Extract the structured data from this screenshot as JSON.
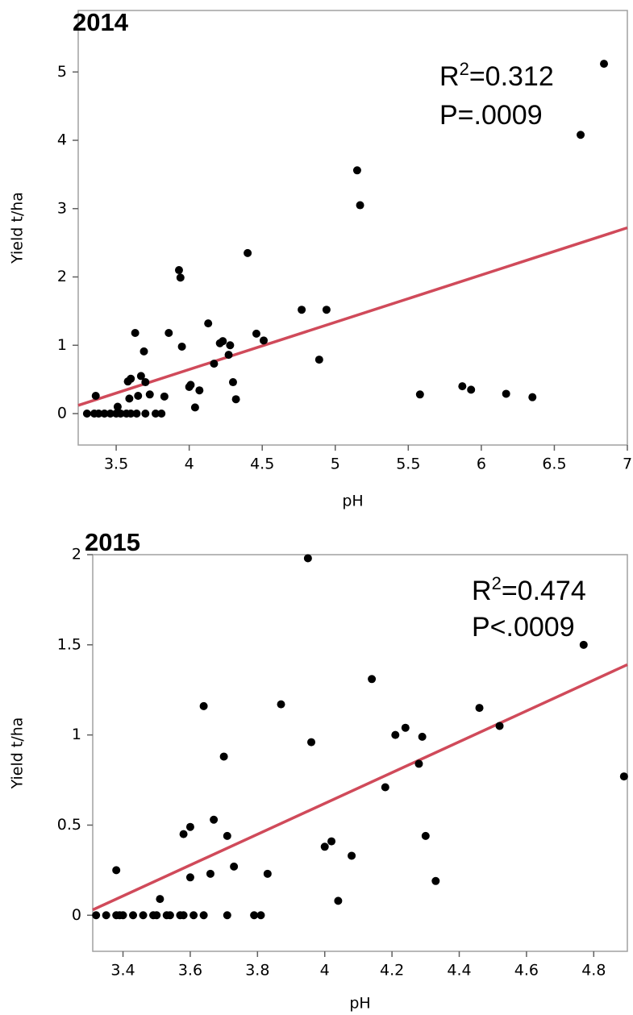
{
  "chart_data": [
    {
      "type": "scatter",
      "title": "2014",
      "x_label": "pH",
      "y_label": "Yield t/ha",
      "xlim": [
        3.24,
        7
      ],
      "ylim": [
        -0.46,
        5.9
      ],
      "xticks": [
        3.5,
        4,
        4.5,
        5,
        5.5,
        6,
        6.5,
        7
      ],
      "yticks": [
        0,
        1,
        2,
        3,
        4,
        5
      ],
      "color": "#000000",
      "x": [
        3.3,
        3.35,
        3.38,
        3.42,
        3.46,
        3.5,
        3.53,
        3.57,
        3.6,
        3.64,
        3.7,
        3.77,
        3.81,
        3.36,
        3.51,
        3.58,
        3.6,
        3.59,
        3.63,
        3.65,
        3.67,
        3.69,
        3.7,
        3.73,
        3.83,
        3.86,
        3.93,
        3.94,
        3.95,
        4.0,
        4.01,
        4.04,
        4.07,
        4.13,
        4.17,
        4.21,
        4.23,
        4.28,
        4.27,
        4.3,
        4.32,
        4.4,
        4.46,
        4.51,
        4.77,
        4.89,
        4.94,
        5.15,
        5.17,
        5.58,
        5.87,
        5.93,
        6.17,
        6.35,
        6.68,
        6.84
      ],
      "y": [
        0,
        0,
        0,
        0,
        0,
        0,
        0,
        0,
        0,
        0,
        0,
        0,
        0,
        0.26,
        0.1,
        0.47,
        0.51,
        0.22,
        1.18,
        0.26,
        0.55,
        0.91,
        0.46,
        0.28,
        0.25,
        1.18,
        2.1,
        1.99,
        0.98,
        0.39,
        0.42,
        0.09,
        0.34,
        1.32,
        0.73,
        1.03,
        1.06,
        1.0,
        0.86,
        0.46,
        0.21,
        2.35,
        1.17,
        1.07,
        1.52,
        0.79,
        1.52,
        3.56,
        3.05,
        0.28,
        0.4,
        0.35,
        0.29,
        0.24,
        4.08,
        5.12
      ],
      "fit_line": {
        "x": [
          3.24,
          7
        ],
        "y": [
          0.12,
          2.72
        ],
        "color": "#d04a5a"
      },
      "annotation": {
        "r": "R",
        "sup": "2",
        "r_value": "=0.312",
        "p": "P=.0009"
      }
    },
    {
      "type": "scatter",
      "title": "2015",
      "x_label": "pH",
      "y_label": "Yield t/ha",
      "xlim": [
        3.31,
        4.9
      ],
      "ylim": [
        -0.2,
        2.0
      ],
      "xticks": [
        3.4,
        3.6,
        3.8,
        4,
        4.2,
        4.4,
        4.6,
        4.8
      ],
      "yticks": [
        0,
        0.5,
        1,
        1.5,
        2
      ],
      "color": "#000000",
      "x": [
        3.32,
        3.35,
        3.38,
        3.39,
        3.4,
        3.43,
        3.46,
        3.49,
        3.5,
        3.53,
        3.54,
        3.57,
        3.58,
        3.61,
        3.64,
        3.71,
        3.79,
        3.81,
        3.38,
        3.51,
        3.58,
        3.6,
        3.6,
        3.64,
        3.66,
        3.67,
        3.7,
        3.71,
        3.73,
        3.83,
        3.87,
        3.95,
        3.96,
        4.0,
        4.02,
        4.04,
        4.08,
        4.14,
        4.18,
        4.21,
        4.24,
        4.29,
        4.28,
        4.3,
        4.33,
        4.46,
        4.52,
        4.77,
        4.89
      ],
      "y": [
        0,
        0,
        0,
        0,
        0,
        0,
        0,
        0,
        0,
        0,
        0,
        0,
        0,
        0,
        0,
        0,
        0,
        0,
        0.25,
        0.09,
        0.45,
        0.49,
        0.21,
        1.16,
        0.23,
        0.53,
        0.88,
        0.44,
        0.27,
        0.23,
        1.17,
        1.98,
        0.96,
        0.38,
        0.41,
        0.08,
        0.33,
        1.31,
        0.71,
        1.0,
        1.04,
        0.99,
        0.84,
        0.44,
        0.19,
        1.15,
        1.05,
        1.5,
        0.77
      ],
      "fit_line": {
        "x": [
          3.31,
          4.9
        ],
        "y": [
          0.03,
          1.39
        ],
        "color": "#d04a5a"
      },
      "annotation": {
        "r": "R",
        "sup": "2",
        "r_value": "=0.474",
        "p": "P<.0009"
      }
    }
  ]
}
